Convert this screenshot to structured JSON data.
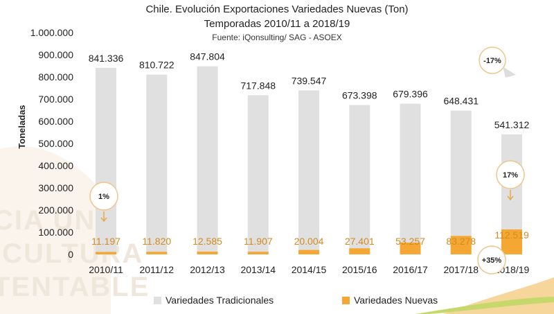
{
  "title": "Chile. Evolución Exportaciones Variedades Nuevas (Ton)",
  "subtitle": "Temporadas 2010/11 a 2018/19",
  "source": "Fuente: iQonsulting/ SAG - ASOEX",
  "watermark": [
    "CIA UNA",
    "ICULTURA",
    "TENTABLE"
  ],
  "colors": {
    "traditional": "#e0e0e0",
    "new": "#f4a833",
    "label_new": "#d48a1f",
    "callout_border": "#f0c58a"
  },
  "chart_data": {
    "type": "bar",
    "categories": [
      "2010/11",
      "2011/12",
      "2012/13",
      "2013/14",
      "2014/15",
      "2015/16",
      "2016/17",
      "2017/18",
      "2018/19"
    ],
    "series": [
      {
        "name": "Variedades Tradicionales",
        "values": [
          841336,
          810722,
          847804,
          717848,
          739547,
          673398,
          679396,
          648431,
          541312
        ],
        "labels": [
          "841.336",
          "810.722",
          "847.804",
          "717.848",
          "739.547",
          "673.398",
          "679.396",
          "648.431",
          "541.312"
        ]
      },
      {
        "name": "Variedades Nuevas",
        "values": [
          11197,
          11820,
          12585,
          11907,
          20004,
          27401,
          53257,
          83278,
          112519
        ],
        "labels": [
          "11.197",
          "11.820",
          "12.585",
          "11.907",
          "20.004",
          "27.401",
          "53.257",
          "83.278",
          "112.519"
        ]
      }
    ],
    "ylabel": "Toneladas",
    "ylim": [
      0,
      1000000
    ],
    "yticks": [
      "0",
      "100.000",
      "200.000",
      "300.000",
      "400.000",
      "500.000",
      "600.000",
      "700.000",
      "800.000",
      "900.000",
      "1.000.000"
    ],
    "grid": false,
    "legend": "bottom",
    "annotations": [
      "1%",
      "17%",
      "-17%",
      "+35%"
    ]
  }
}
